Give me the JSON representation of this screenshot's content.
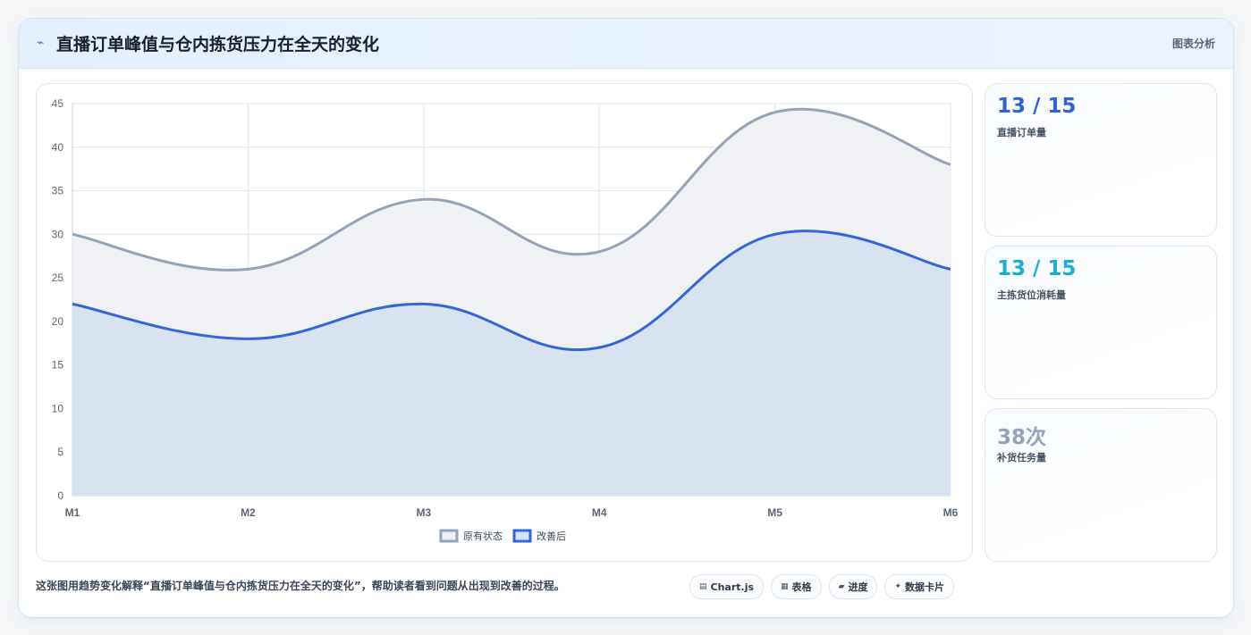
{
  "header": {
    "title_icon": "⌁",
    "title": "直播订单峰值与仓内拣货压力在全天的变化",
    "tag": "图表分析"
  },
  "chart_data": {
    "type": "area",
    "categories": [
      "M1",
      "M2",
      "M3",
      "M4",
      "M5",
      "M6"
    ],
    "ylim": [
      0,
      45
    ],
    "yticks": [
      0,
      5,
      10,
      15,
      20,
      25,
      30,
      35,
      40,
      45
    ],
    "grid": true,
    "legend_position": "bottom",
    "series": [
      {
        "name": "原有状态",
        "values": [
          30,
          26,
          34,
          28,
          44,
          38
        ],
        "color": "#94a3b8",
        "fill": "#eef0f4"
      },
      {
        "name": "改善后",
        "values": [
          22,
          18,
          22,
          17,
          30,
          26
        ],
        "color": "#3566d6",
        "fill": "#d6e1f0"
      }
    ]
  },
  "stats": [
    {
      "value": "13 / 15",
      "label": "直播订单量",
      "color": "#2f63d6"
    },
    {
      "value": "13 / 15",
      "label": "主拣货位消耗量",
      "color": "#1aaed0"
    },
    {
      "value": "38次",
      "label": "补货任务量",
      "color": "#94a3b8"
    }
  ],
  "footer": {
    "description": "这张图用趋势变化解释“直播订单峰值与仓内拣货压力在全天的变化”，帮助读者看到问题从出现到改善的过程。",
    "chips": [
      {
        "icon": "chart-icon",
        "glyph": "▤",
        "label": "Chart.js"
      },
      {
        "icon": "table-icon",
        "glyph": "▦",
        "label": "表格"
      },
      {
        "icon": "progress-icon",
        "glyph": "▰",
        "label": "进度"
      },
      {
        "icon": "sparkle-icon",
        "glyph": "✦",
        "label": "数据卡片"
      }
    ]
  }
}
